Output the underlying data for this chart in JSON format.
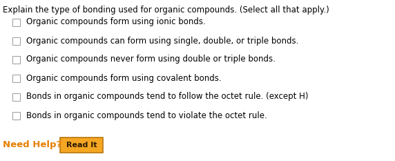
{
  "title": "Explain the type of bonding used for organic compounds. (Select all that apply.)",
  "title_color": "#000000",
  "title_fontsize": 8.5,
  "options": [
    "Organic compounds form using ionic bonds.",
    "Organic compounds can form using single, double, or triple bonds.",
    "Organic compounds never form using double or triple bonds.",
    "Organic compounds form using covalent bonds.",
    "Bonds in organic compounds tend to follow the octet rule. (except H)",
    "Bonds in organic compounds tend to violate the octet rule."
  ],
  "option_fontsize": 8.5,
  "option_color": "#000000",
  "checkbox_color": "#999999",
  "checkbox_facecolor": "#ffffff",
  "need_help_text": "Need Help?",
  "need_help_color": "#e87e00",
  "need_help_fontsize": 9.5,
  "button_text": "Read It",
  "button_facecolor": "#f5a623",
  "button_edgecolor": "#b8760a",
  "button_text_color": "#2a1a00",
  "button_fontsize": 8.0,
  "bg_color": "#ffffff"
}
